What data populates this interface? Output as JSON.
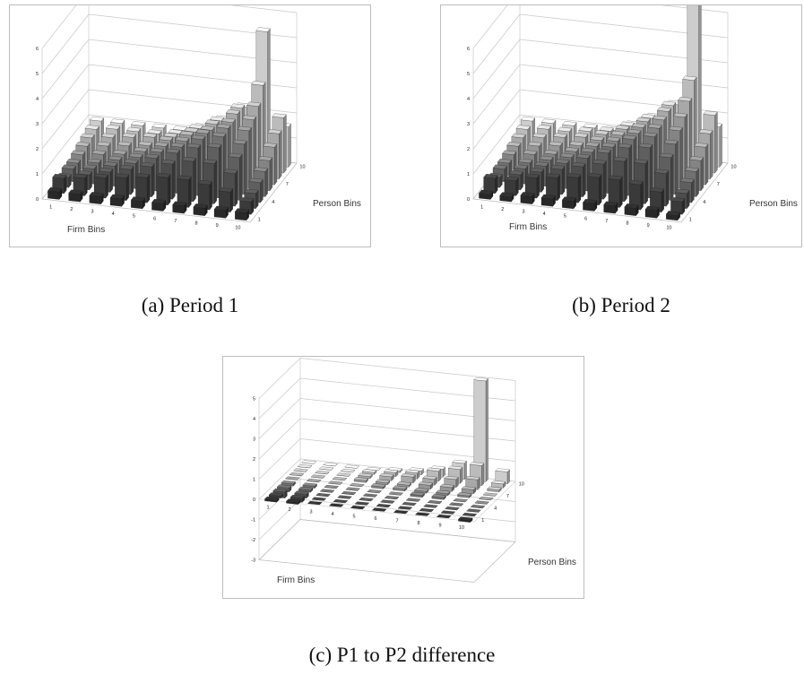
{
  "panels": [
    {
      "id": "a",
      "caption": "(a) Period 1",
      "x_axis_title": "Firm Bins",
      "y_axis_title": "Person Bins",
      "z_ticks": [
        "0",
        "1",
        "2",
        "3",
        "4",
        "5",
        "6"
      ],
      "x_ticks": [
        "1",
        "2",
        "3",
        "4",
        "5",
        "6",
        "7",
        "8",
        "9",
        "10"
      ],
      "y_ticks": [
        "1",
        "4",
        "7",
        "10"
      ]
    },
    {
      "id": "b",
      "caption": "(b) Period 2",
      "x_axis_title": "Firm Bins",
      "y_axis_title": "Person Bins",
      "z_ticks": [
        "0",
        "1",
        "2",
        "3",
        "4",
        "5",
        "6"
      ],
      "x_ticks": [
        "1",
        "2",
        "3",
        "4",
        "5",
        "6",
        "7",
        "8",
        "9",
        "10"
      ],
      "y_ticks": [
        "1",
        "4",
        "7",
        "10"
      ]
    },
    {
      "id": "c",
      "caption": "(c) P1 to P2 difference",
      "x_axis_title": "Firm Bins",
      "y_axis_title": "Person Bins",
      "z_ticks": [
        "-3",
        "-2",
        "-1",
        "0",
        "1",
        "2",
        "3",
        "4",
        "5"
      ],
      "x_ticks": [
        "1",
        "2",
        "3",
        "4",
        "5",
        "6",
        "7",
        "8",
        "9",
        "10"
      ],
      "y_ticks": [
        "1",
        "4",
        "7",
        "10"
      ]
    }
  ],
  "chart_data": [
    {
      "type": "bar3d",
      "x_label": "Firm Bins",
      "y_label": "Person Bins",
      "zlim": [
        0,
        6
      ],
      "x_bins": [
        1,
        2,
        3,
        4,
        5,
        6,
        7,
        8,
        9,
        10
      ],
      "y_bins": [
        1,
        2,
        3,
        4,
        5,
        6,
        7,
        8,
        9,
        10
      ],
      "values": [
        [
          0.3,
          0.3,
          0.3,
          0.3,
          0.3,
          0.3,
          0.3,
          0.3,
          0.3,
          0.3
        ],
        [
          0.6,
          0.7,
          0.8,
          0.9,
          1.0,
          1.1,
          1.1,
          1.0,
          0.8,
          0.5
        ],
        [
          0.4,
          0.6,
          0.8,
          1.0,
          1.2,
          1.4,
          1.6,
          1.6,
          1.3,
          0.6
        ],
        [
          0.5,
          0.6,
          0.8,
          1.0,
          1.3,
          1.6,
          1.9,
          2.0,
          1.7,
          0.8
        ],
        [
          0.5,
          0.6,
          0.8,
          1.0,
          1.3,
          1.6,
          2.0,
          2.2,
          2.0,
          1.0
        ],
        [
          0.6,
          0.7,
          0.8,
          1.0,
          1.3,
          1.6,
          2.0,
          2.3,
          2.3,
          1.2
        ],
        [
          0.7,
          0.8,
          0.9,
          1.0,
          1.3,
          1.6,
          1.9,
          2.3,
          2.5,
          1.5
        ],
        [
          0.8,
          0.9,
          1.0,
          1.1,
          1.2,
          1.5,
          1.9,
          2.4,
          2.8,
          1.8
        ],
        [
          0.9,
          1.0,
          1.0,
          1.0,
          1.1,
          1.4,
          1.8,
          2.4,
          3.4,
          2.2
        ],
        [
          1.0,
          1.0,
          1.0,
          1.0,
          1.0,
          1.2,
          1.6,
          2.2,
          5.3,
          1.6
        ]
      ]
    },
    {
      "type": "bar3d",
      "x_label": "Firm Bins",
      "y_label": "Person Bins",
      "zlim": [
        0,
        6
      ],
      "x_bins": [
        1,
        2,
        3,
        4,
        5,
        6,
        7,
        8,
        9,
        10
      ],
      "y_bins": [
        1,
        2,
        3,
        4,
        5,
        6,
        7,
        8,
        9,
        10
      ],
      "values": [
        [
          0.2,
          0.2,
          0.3,
          0.3,
          0.3,
          0.3,
          0.3,
          0.3,
          0.3,
          0.2
        ],
        [
          0.6,
          0.6,
          0.8,
          0.9,
          1.0,
          1.1,
          1.1,
          1.0,
          0.8,
          0.5
        ],
        [
          0.4,
          0.6,
          0.8,
          1.0,
          1.2,
          1.4,
          1.6,
          1.6,
          1.3,
          0.6
        ],
        [
          0.5,
          0.6,
          0.8,
          1.0,
          1.3,
          1.6,
          1.9,
          2.0,
          1.7,
          0.8
        ],
        [
          0.5,
          0.6,
          0.8,
          1.0,
          1.3,
          1.6,
          2.0,
          2.2,
          2.0,
          1.0
        ],
        [
          0.6,
          0.7,
          0.8,
          1.0,
          1.3,
          1.6,
          2.0,
          2.3,
          2.3,
          1.2
        ],
        [
          0.7,
          0.8,
          0.9,
          1.0,
          1.3,
          1.6,
          2.0,
          2.4,
          2.6,
          1.5
        ],
        [
          0.8,
          0.9,
          1.0,
          1.1,
          1.3,
          1.6,
          2.0,
          2.5,
          3.0,
          1.8
        ],
        [
          0.9,
          1.0,
          1.0,
          1.1,
          1.2,
          1.5,
          1.9,
          2.5,
          3.6,
          2.3
        ],
        [
          1.0,
          1.0,
          1.0,
          1.0,
          1.0,
          1.3,
          1.7,
          2.3,
          6.4,
          1.6
        ]
      ]
    },
    {
      "type": "bar3d",
      "x_label": "Firm Bins",
      "y_label": "Person Bins",
      "zlim": [
        -3,
        5
      ],
      "x_bins": [
        1,
        2,
        3,
        4,
        5,
        6,
        7,
        8,
        9,
        10
      ],
      "y_bins": [
        1,
        2,
        3,
        4,
        5,
        6,
        7,
        8,
        9,
        10
      ],
      "values": [
        [
          -0.1,
          -0.1,
          0.0,
          0.0,
          0.0,
          0.0,
          0.0,
          0.0,
          0.0,
          -0.1
        ],
        [
          -0.1,
          -0.2,
          0.0,
          0.0,
          0.0,
          0.0,
          0.0,
          0.0,
          0.0,
          0.0
        ],
        [
          -0.3,
          -0.2,
          0.0,
          0.0,
          0.0,
          0.0,
          0.0,
          0.0,
          0.0,
          0.0
        ],
        [
          -0.2,
          -0.1,
          0.0,
          0.0,
          0.0,
          0.0,
          0.0,
          0.0,
          0.0,
          0.0
        ],
        [
          -0.1,
          -0.1,
          0.0,
          0.0,
          0.0,
          0.0,
          0.1,
          0.1,
          0.0,
          0.0
        ],
        [
          0.0,
          0.0,
          0.0,
          0.0,
          0.1,
          0.1,
          0.1,
          0.1,
          0.1,
          0.0
        ],
        [
          0.0,
          0.0,
          0.0,
          0.1,
          0.1,
          0.1,
          0.2,
          0.2,
          0.2,
          0.0
        ],
        [
          0.0,
          0.0,
          0.0,
          0.1,
          0.2,
          0.3,
          0.3,
          0.4,
          0.5,
          0.1
        ],
        [
          0.0,
          0.0,
          0.0,
          0.1,
          0.2,
          0.3,
          0.5,
          0.7,
          1.0,
          0.2
        ],
        [
          0.0,
          0.0,
          0.0,
          0.0,
          0.1,
          0.2,
          0.4,
          0.8,
          5.0,
          0.6
        ]
      ]
    }
  ]
}
